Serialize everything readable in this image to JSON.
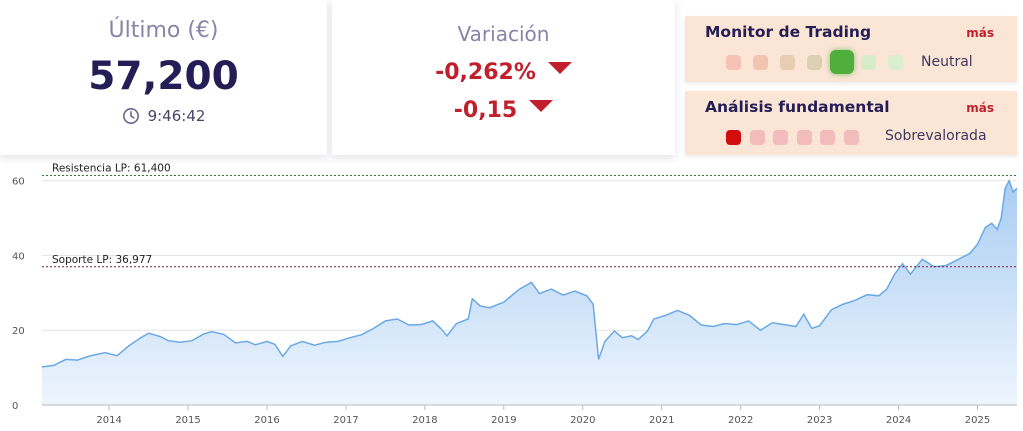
{
  "last": {
    "label": "Último (€)",
    "price": "57,200",
    "time": "9:46:42",
    "icon": "clock-icon"
  },
  "variation": {
    "label": "Variación",
    "percent": "-0,262%",
    "absolute": "-0,15",
    "direction": "down",
    "color": "#c0202c"
  },
  "trading_monitor": {
    "title": "Monitor de Trading",
    "more": "más",
    "status": "Neutral",
    "dots": [
      "#f6c2b6",
      "#f2c4b4",
      "#e8cdb5",
      "#ddd0b4",
      "#4fae3c",
      "#d6ecc8",
      "#daefcc"
    ],
    "active_index": 4
  },
  "fundamental": {
    "title": "Análisis fundamental",
    "more": "más",
    "status": "Sobrevalorada",
    "dots": [
      "#d10d0d",
      "#f3bcbc",
      "#f3bcbc",
      "#f3bcbc",
      "#f3bcbc",
      "#f3bcbc"
    ],
    "active_index": 0
  },
  "chart_data": {
    "type": "area",
    "ylim": [
      0,
      65
    ],
    "yticks": [
      0,
      20,
      40,
      60
    ],
    "xticks": [
      "2014",
      "2015",
      "2016",
      "2017",
      "2018",
      "2019",
      "2020",
      "2021",
      "2022",
      "2023",
      "2024",
      "2025"
    ],
    "x_start": 2013.15,
    "x_end": 2025.5,
    "resistance": {
      "label": "Resistencia LP: 61,400",
      "value": 61.4,
      "color": "#2e7d32"
    },
    "support": {
      "label": "Soporte LP: 36,977",
      "value": 36.977,
      "color": "#7b1e3a"
    },
    "series": [
      {
        "values": [
          [
            2013.15,
            10.2
          ],
          [
            2013.3,
            10.6
          ],
          [
            2013.45,
            12.2
          ],
          [
            2013.6,
            12.0
          ],
          [
            2013.75,
            13.1
          ],
          [
            2013.95,
            14.0
          ],
          [
            2014.1,
            13.2
          ],
          [
            2014.25,
            15.8
          ],
          [
            2014.4,
            18.0
          ],
          [
            2014.5,
            19.2
          ],
          [
            2014.65,
            18.3
          ],
          [
            2014.75,
            17.2
          ],
          [
            2014.9,
            16.8
          ],
          [
            2015.05,
            17.2
          ],
          [
            2015.2,
            19.0
          ],
          [
            2015.3,
            19.6
          ],
          [
            2015.45,
            18.9
          ],
          [
            2015.6,
            16.6
          ],
          [
            2015.75,
            17.0
          ],
          [
            2015.85,
            16.1
          ],
          [
            2016.0,
            17.0
          ],
          [
            2016.1,
            16.2
          ],
          [
            2016.2,
            13.0
          ],
          [
            2016.3,
            15.8
          ],
          [
            2016.45,
            17.0
          ],
          [
            2016.6,
            16.0
          ],
          [
            2016.75,
            16.8
          ],
          [
            2016.9,
            17.0
          ],
          [
            2017.05,
            18.0
          ],
          [
            2017.2,
            18.8
          ],
          [
            2017.35,
            20.5
          ],
          [
            2017.5,
            22.5
          ],
          [
            2017.65,
            23.0
          ],
          [
            2017.8,
            21.4
          ],
          [
            2017.95,
            21.5
          ],
          [
            2018.1,
            22.5
          ],
          [
            2018.2,
            20.5
          ],
          [
            2018.28,
            18.5
          ],
          [
            2018.4,
            21.8
          ],
          [
            2018.55,
            23.0
          ],
          [
            2018.6,
            28.4
          ],
          [
            2018.7,
            26.5
          ],
          [
            2018.82,
            26.0
          ],
          [
            2018.9,
            26.7
          ],
          [
            2019.0,
            27.5
          ],
          [
            2019.1,
            29.3
          ],
          [
            2019.2,
            31.0
          ],
          [
            2019.35,
            32.8
          ],
          [
            2019.45,
            29.8
          ],
          [
            2019.6,
            31.0
          ],
          [
            2019.75,
            29.4
          ],
          [
            2019.9,
            30.5
          ],
          [
            2020.05,
            29.2
          ],
          [
            2020.13,
            27.0
          ],
          [
            2020.2,
            12.2
          ],
          [
            2020.28,
            17.0
          ],
          [
            2020.4,
            19.8
          ],
          [
            2020.5,
            18.0
          ],
          [
            2020.62,
            18.5
          ],
          [
            2020.7,
            17.5
          ],
          [
            2020.82,
            19.8
          ],
          [
            2020.9,
            23.0
          ],
          [
            2021.05,
            24.0
          ],
          [
            2021.2,
            25.3
          ],
          [
            2021.35,
            24.0
          ],
          [
            2021.5,
            21.4
          ],
          [
            2021.65,
            21.0
          ],
          [
            2021.8,
            21.8
          ],
          [
            2021.95,
            21.5
          ],
          [
            2022.1,
            22.5
          ],
          [
            2022.25,
            20.0
          ],
          [
            2022.4,
            22.0
          ],
          [
            2022.55,
            21.5
          ],
          [
            2022.7,
            21.0
          ],
          [
            2022.8,
            24.3
          ],
          [
            2022.9,
            20.5
          ],
          [
            2023.0,
            21.2
          ],
          [
            2023.15,
            25.5
          ],
          [
            2023.3,
            27.0
          ],
          [
            2023.45,
            28.0
          ],
          [
            2023.6,
            29.5
          ],
          [
            2023.75,
            29.2
          ],
          [
            2023.85,
            31.0
          ],
          [
            2023.95,
            35.0
          ],
          [
            2024.05,
            37.8
          ],
          [
            2024.15,
            35.0
          ],
          [
            2024.3,
            39.0
          ],
          [
            2024.45,
            37.0
          ],
          [
            2024.6,
            37.3
          ],
          [
            2024.75,
            38.9
          ],
          [
            2024.9,
            40.5
          ],
          [
            2025.0,
            43.0
          ],
          [
            2025.1,
            47.5
          ],
          [
            2025.18,
            48.6
          ],
          [
            2025.25,
            47.0
          ],
          [
            2025.3,
            50.0
          ],
          [
            2025.35,
            58.0
          ],
          [
            2025.4,
            60.0
          ],
          [
            2025.45,
            57.0
          ],
          [
            2025.5,
            58.0
          ]
        ]
      }
    ]
  }
}
